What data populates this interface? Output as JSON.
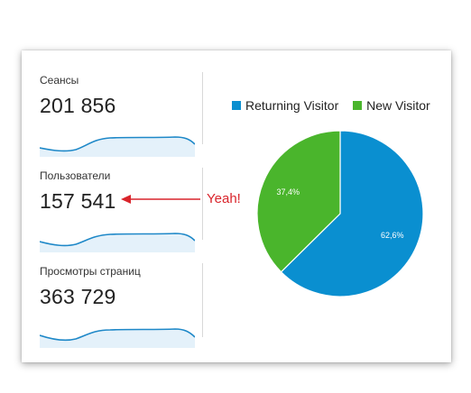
{
  "metrics": [
    {
      "label": "Сеансы",
      "value": "201 856"
    },
    {
      "label": "Пользователи",
      "value": "157 541"
    },
    {
      "label": "Просмотры страниц",
      "value": "363 729"
    }
  ],
  "annotation": {
    "text": "Yeah!",
    "color": "#d9242b"
  },
  "legend": [
    {
      "label": "Returning Visitor",
      "color": "#0a8fd0"
    },
    {
      "label": "New Visitor",
      "color": "#4ab52c"
    }
  ],
  "chart_data": {
    "type": "pie",
    "categories": [
      "Returning Visitor",
      "New Visitor"
    ],
    "values": [
      62.6,
      37.4
    ],
    "labels": [
      "62,6%",
      "37,4%"
    ],
    "colors": [
      "#0a8fd0",
      "#4ab52c"
    ],
    "legend_position": "top"
  },
  "sparkline_color": "#1e88c8",
  "sparkline_fill": "#e4f1fa"
}
